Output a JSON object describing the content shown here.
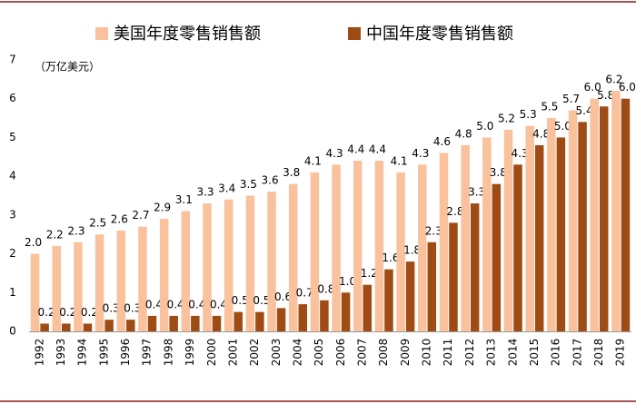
{
  "chart_data": {
    "type": "bar",
    "unit_label": "（万亿美元）",
    "categories": [
      "1992",
      "1993",
      "1994",
      "1995",
      "1996",
      "1997",
      "1998",
      "1999",
      "2000",
      "2001",
      "2002",
      "2003",
      "2004",
      "2005",
      "2006",
      "2007",
      "2008",
      "2009",
      "2010",
      "2011",
      "2012",
      "2013",
      "2014",
      "2015",
      "2016",
      "2017",
      "2018",
      "2019"
    ],
    "series": [
      {
        "name": "美国年度零售销售额",
        "color": "#F9C19C",
        "values": [
          2.0,
          2.2,
          2.3,
          2.5,
          2.6,
          2.7,
          2.9,
          3.1,
          3.3,
          3.4,
          3.5,
          3.6,
          3.8,
          4.1,
          4.3,
          4.4,
          4.4,
          4.1,
          4.3,
          4.6,
          4.8,
          5.0,
          5.2,
          5.3,
          5.5,
          5.7,
          6.0,
          6.2
        ],
        "value_labels": [
          "2.0",
          "2.2",
          "2.3",
          "2.5",
          "2.6",
          "2.7",
          "2.9",
          "3.1",
          "3.3",
          "3.4",
          "3.5",
          "3.6",
          "3.8",
          "4.1",
          "4.3",
          "4.4",
          "4.4",
          "4.1",
          "4.3",
          "4.6",
          "4.8",
          "5.0",
          "5.2",
          "5.3",
          "5.5",
          "5.7",
          "6.0",
          "6.2"
        ]
      },
      {
        "name": "中国年度零售销售额",
        "color": "#9E4C14",
        "values": [
          0.2,
          0.2,
          0.2,
          0.3,
          0.3,
          0.4,
          0.4,
          0.4,
          0.4,
          0.5,
          0.5,
          0.6,
          0.7,
          0.8,
          1.0,
          1.2,
          1.6,
          1.8,
          2.3,
          2.8,
          3.3,
          3.8,
          4.3,
          4.8,
          5.0,
          5.4,
          5.8,
          6.0
        ],
        "value_labels": [
          "0.2",
          "0.2",
          "0.2",
          "0.3",
          "0.3",
          "0.4",
          "0.4",
          "0.4",
          "0.4",
          "0.5",
          "0.5",
          "0.6",
          "0.7",
          "0.8",
          "1.0",
          "1.2",
          "1.6",
          "1.8",
          "2.3",
          "2.8",
          "3.3",
          "3.8",
          "4.3",
          "4.8",
          "5.0",
          "5.4",
          "5.8",
          "6.0"
        ]
      }
    ],
    "ylim": [
      0,
      7
    ],
    "yticks": [
      0,
      1,
      2,
      3,
      4,
      5,
      6,
      7
    ],
    "grid": false
  }
}
